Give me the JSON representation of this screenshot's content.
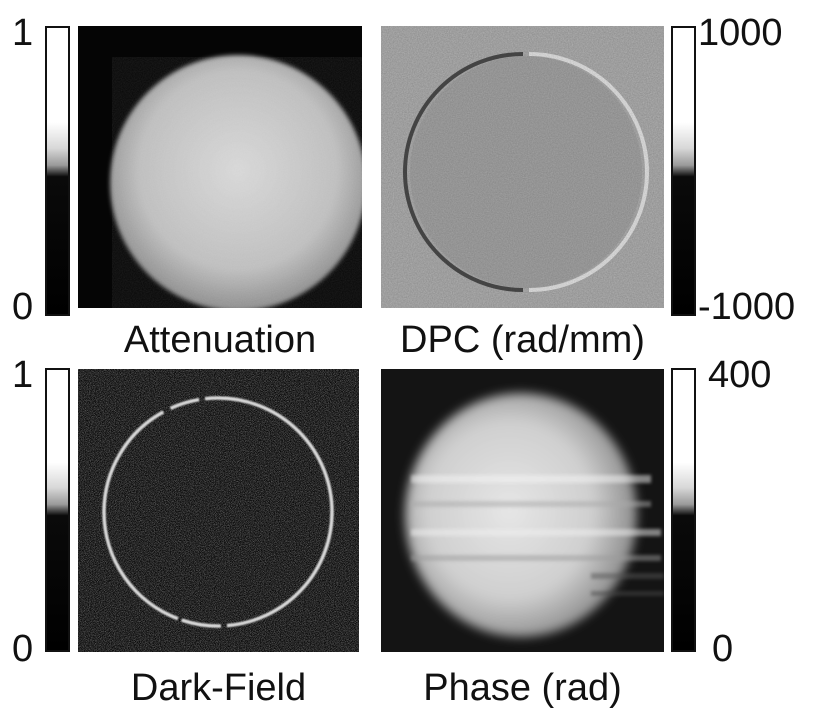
{
  "panels": [
    {
      "id": "attenuation",
      "label": "Attenuation"
    },
    {
      "id": "dpc",
      "label": "DPC (rad/mm)"
    },
    {
      "id": "dark-field",
      "label": "Dark-Field"
    },
    {
      "id": "phase",
      "label": "Phase (rad)"
    }
  ],
  "colorbars": {
    "attenuation": {
      "max": "1",
      "min": "0"
    },
    "dpc": {
      "max": "1000",
      "min": "-1000"
    },
    "dark_field": {
      "max": "1",
      "min": "0"
    },
    "phase": {
      "max": "400",
      "min": "0"
    }
  },
  "colors": {
    "background": "#ffffff",
    "text": "#111111",
    "image_background_dark": "#050505",
    "dpc_background": "#9a9a9a"
  }
}
